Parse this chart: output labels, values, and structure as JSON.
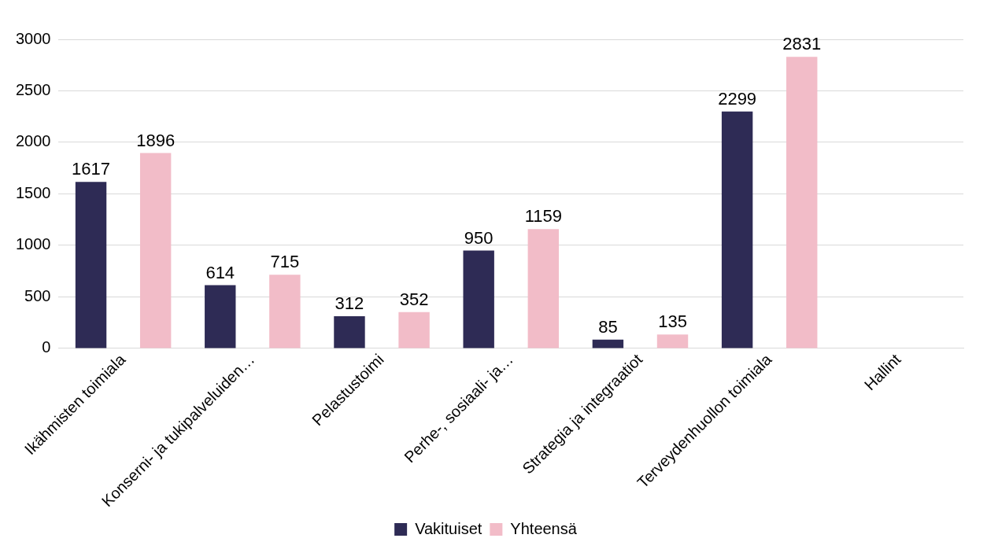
{
  "chart_data": {
    "type": "bar",
    "categories": [
      "Ikähmisten toimiala",
      "Konserni- ja tukipalveluiden…",
      "Pelastustoimi",
      "Perhe-, sosiaali- ja…",
      "Strategia ja integraatiot",
      "Terveydenhuollon toimiala",
      "Hallint"
    ],
    "series": [
      {
        "name": "Vakituiset",
        "color": "#2e2b55",
        "values": [
          1617,
          614,
          312,
          950,
          85,
          2299,
          null
        ]
      },
      {
        "name": "Yhteensä",
        "color": "#f2bcc8",
        "values": [
          1896,
          715,
          352,
          1159,
          135,
          2831,
          null
        ]
      }
    ],
    "ylim": [
      0,
      3000
    ],
    "yticks": [
      0,
      500,
      1000,
      1500,
      2000,
      2500,
      3000
    ],
    "grid": "y",
    "legend": "bottom",
    "data_labels": true
  }
}
